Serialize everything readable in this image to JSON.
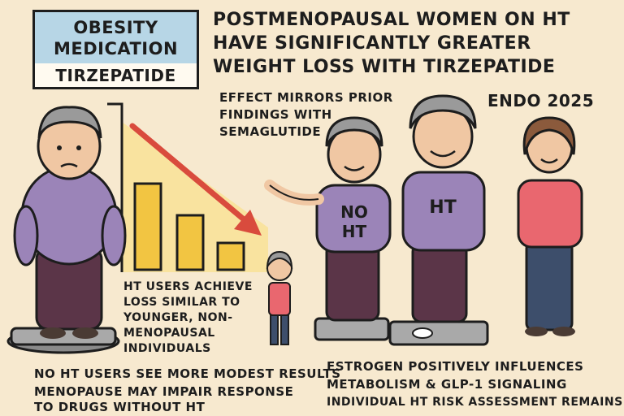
{
  "label_box": {
    "line1": "OBESITY",
    "line2": "MEDICATION",
    "line3": "TIRZEPATIDE"
  },
  "headline": {
    "line1": "POSTMENOPAUSAL WOMEN ON HT",
    "line2": "HAVE SIGNIFICANTLY GREATER",
    "line3": "WEIGHT LOSS WITH TIRZEPATIDE"
  },
  "event": "ENDO 2025",
  "effect": {
    "line1": "EFFECT MIRRORS PRIOR",
    "line2": "FINDINGS WITH",
    "line3": "SEMAGLUTIDE"
  },
  "ht_users_note": {
    "line1": "HT USERS ACHIEVE",
    "line2": "LOSS SIMILAR TO",
    "line3": "YOUNGER, NON-",
    "line4": "MENOPAUSAL",
    "line5": "INDIVIDUALS"
  },
  "shirt_labels": {
    "no_ht_line1": "NO",
    "no_ht_line2": "HT",
    "ht": "HT"
  },
  "bottom_left": {
    "line1": "NO HT USERS SEE MORE MODEST RESULTS",
    "line2": "MENOPAUSE MAY IMPAIR RESPONSE",
    "line3": "TO DRUGS WITHOUT HT"
  },
  "bottom_right": {
    "line1": "ESTROGEN POSITIVELY INFLUENCES",
    "line2": "METABOLISM & GLP-1 SIGNALING",
    "line3": "INDIVIDUAL HT RISK ASSESSMENT REMAINS"
  },
  "colors": {
    "background": "#f7e9cf",
    "label_blue": "#b7d6e6",
    "bar_yellow": "#f2c542",
    "arrow_red": "#d94b3d",
    "shirt_purple": "#9b84b8",
    "pants_plum": "#5b3548",
    "shirt_pink": "#e9676f",
    "skin": "#f0c7a3",
    "hair_gray": "#9a9a9a"
  },
  "icons": [
    "weight-scale-icon",
    "down-arrow-icon",
    "bar-chart-icon"
  ]
}
